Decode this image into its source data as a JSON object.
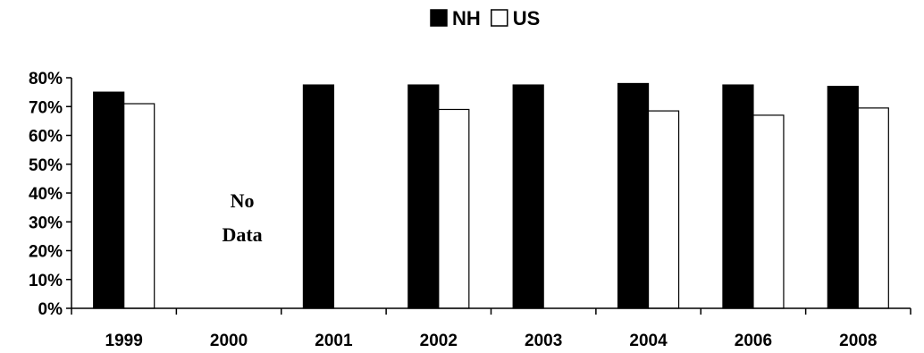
{
  "chart_data": {
    "type": "bar",
    "categories": [
      "1999",
      "2000",
      "2001",
      "2002",
      "2003",
      "2004",
      "2006",
      "2008"
    ],
    "series": [
      {
        "name": "NH",
        "values": [
          75,
          null,
          77.5,
          77.5,
          77.5,
          78,
          77.5,
          77
        ],
        "color": "#000000"
      },
      {
        "name": "US",
        "values": [
          71,
          null,
          null,
          69,
          null,
          68.5,
          67,
          69.5
        ],
        "color": "#ffffff"
      }
    ],
    "yticks": [
      "0%",
      "10%",
      "20%",
      "30%",
      "40%",
      "50%",
      "60%",
      "70%",
      "80%"
    ],
    "ylim": [
      0,
      80
    ],
    "legend": {
      "position": "top-center"
    },
    "annotations": [
      {
        "category": "2000",
        "lines": [
          "No",
          "Data"
        ]
      }
    ],
    "grid": false
  }
}
